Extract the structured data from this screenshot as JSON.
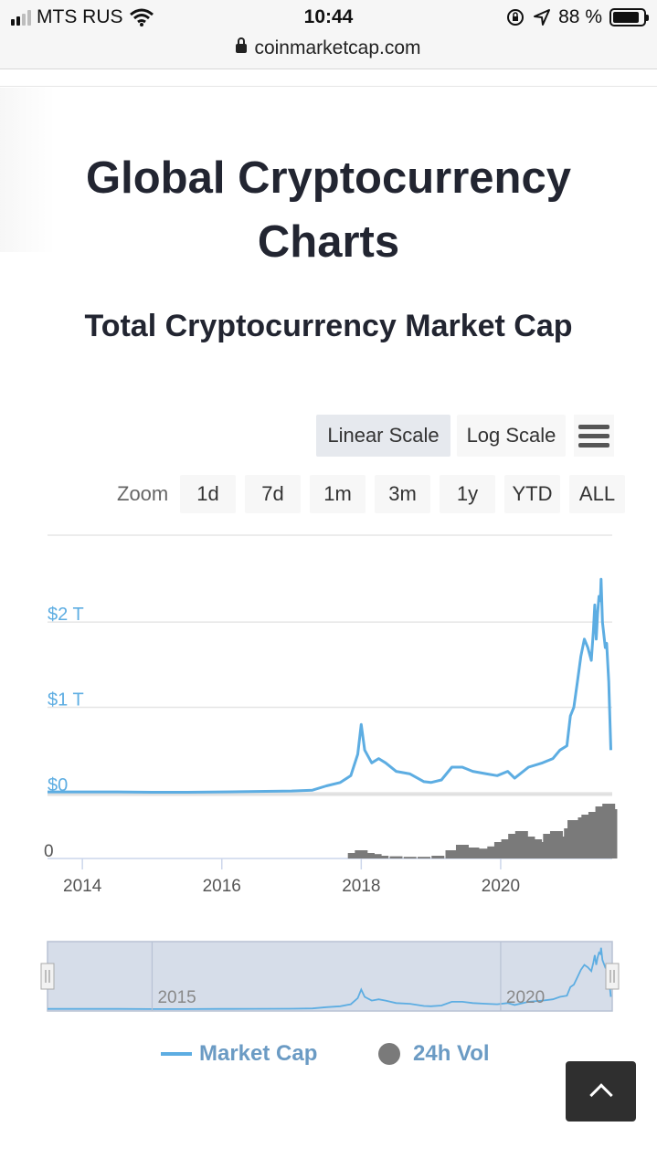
{
  "status_bar": {
    "carrier": "MTS RUS",
    "time": "10:44",
    "battery_percent": "88 %",
    "battery_level": 0.88
  },
  "browser": {
    "url": "coinmarketcap.com"
  },
  "page": {
    "title": "Global Cryptocurrency Charts",
    "chart_title": "Total Cryptocurrency Market Cap"
  },
  "scale_buttons": {
    "linear": "Linear Scale",
    "log": "Log Scale",
    "active": "linear"
  },
  "zoom": {
    "label": "Zoom",
    "options": [
      "1d",
      "7d",
      "1m",
      "3m",
      "1y",
      "YTD",
      "ALL"
    ]
  },
  "chart_data": {
    "type": "line",
    "title": "Total Cryptocurrency Market Cap",
    "y_ticks": [
      "$2 T",
      "$1 T",
      "$0"
    ],
    "y_tick_values": [
      2,
      1,
      0
    ],
    "ylim": [
      0,
      2.6
    ],
    "y_unit": "trillion USD",
    "x_ticks": [
      "2014",
      "2016",
      "2018",
      "2020"
    ],
    "xlim": [
      2013.5,
      2021.6
    ],
    "volume_axis_label": "0",
    "series": [
      {
        "name": "Market Cap",
        "color": "#5dade2",
        "x": [
          2013.5,
          2014.0,
          2014.5,
          2015.0,
          2015.5,
          2016.0,
          2016.5,
          2017.0,
          2017.3,
          2017.5,
          2017.7,
          2017.85,
          2017.95,
          2018.0,
          2018.05,
          2018.15,
          2018.25,
          2018.35,
          2018.5,
          2018.7,
          2018.9,
          2019.0,
          2019.15,
          2019.3,
          2019.45,
          2019.6,
          2019.8,
          2019.95,
          2020.1,
          2020.2,
          2020.4,
          2020.6,
          2020.75,
          2020.85,
          2020.95,
          2021.0,
          2021.05,
          2021.1,
          2021.15,
          2021.2,
          2021.25,
          2021.3,
          2021.33,
          2021.35,
          2021.37,
          2021.39,
          2021.41,
          2021.43,
          2021.44,
          2021.46,
          2021.5,
          2021.52,
          2021.55,
          2021.58
        ],
        "values": [
          0.01,
          0.01,
          0.01,
          0.005,
          0.005,
          0.01,
          0.015,
          0.02,
          0.03,
          0.08,
          0.12,
          0.2,
          0.45,
          0.8,
          0.5,
          0.35,
          0.4,
          0.35,
          0.25,
          0.22,
          0.13,
          0.12,
          0.15,
          0.3,
          0.3,
          0.25,
          0.22,
          0.2,
          0.25,
          0.17,
          0.3,
          0.35,
          0.4,
          0.5,
          0.55,
          0.9,
          1.0,
          1.3,
          1.6,
          1.8,
          1.7,
          1.55,
          1.9,
          2.2,
          1.8,
          2.1,
          2.3,
          2.25,
          2.5,
          2.0,
          1.7,
          1.75,
          1.3,
          0.5
        ]
      },
      {
        "name": "24h Vol",
        "color": "#7a7a7a",
        "type": "bar",
        "x": [
          2017.9,
          2018.0,
          2018.1,
          2018.2,
          2018.3,
          2018.5,
          2018.7,
          2018.9,
          2019.1,
          2019.3,
          2019.45,
          2019.6,
          2019.75,
          2019.9,
          2020.0,
          2020.1,
          2020.2,
          2020.3,
          2020.4,
          2020.5,
          2020.6,
          2020.7,
          2020.8,
          2020.9,
          2021.0,
          2021.05,
          2021.1,
          2021.15,
          2021.2,
          2021.25,
          2021.3,
          2021.35,
          2021.4,
          2021.45,
          2021.5,
          2021.55,
          2021.58
        ],
        "values": [
          0.1,
          0.15,
          0.1,
          0.08,
          0.05,
          0.04,
          0.03,
          0.03,
          0.05,
          0.15,
          0.25,
          0.2,
          0.18,
          0.22,
          0.3,
          0.35,
          0.45,
          0.5,
          0.4,
          0.35,
          0.3,
          0.45,
          0.5,
          0.4,
          0.55,
          0.7,
          0.6,
          0.65,
          0.75,
          0.8,
          0.7,
          0.85,
          0.75,
          0.95,
          0.8,
          1.0,
          0.9
        ]
      }
    ],
    "navigator": {
      "x_ticks": [
        "2015",
        "2020"
      ]
    },
    "legend": [
      {
        "label": "Market Cap",
        "marker": "line",
        "color": "#5dade2"
      },
      {
        "label": "24h Vol",
        "marker": "dot",
        "color": "#7a7a7a"
      }
    ],
    "grid": true
  },
  "icons": [
    "signal-icon",
    "wifi-icon",
    "rotation-lock-icon",
    "location-arrow-icon",
    "battery-icon",
    "lock-icon",
    "hamburger-menu-icon",
    "chevron-up-icon"
  ]
}
